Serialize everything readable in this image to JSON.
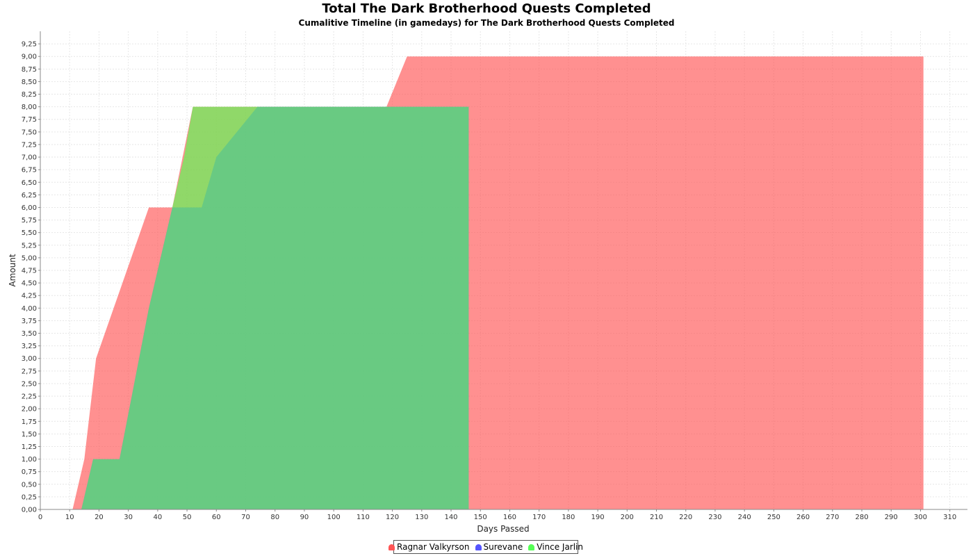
{
  "chart_data": {
    "type": "area",
    "title": "Total The Dark Brotherhood Quests Completed",
    "subtitle": "Cumalitive Timeline (in gamedays) for The Dark Brotherhood Quests Completed",
    "xlabel": "Days Passed",
    "ylabel": "Amount",
    "xlim": [
      0,
      316
    ],
    "ylim": [
      0,
      9.5
    ],
    "x_ticks": [
      0,
      10,
      20,
      30,
      40,
      50,
      60,
      70,
      80,
      90,
      100,
      110,
      120,
      130,
      140,
      150,
      160,
      170,
      180,
      190,
      200,
      210,
      220,
      230,
      240,
      250,
      260,
      270,
      280,
      290,
      300,
      310
    ],
    "y_ticks": [
      "0,00",
      "0,25",
      "0,50",
      "0,75",
      "1,00",
      "1,25",
      "1,50",
      "1,75",
      "2,00",
      "2,25",
      "2,50",
      "2,75",
      "3,00",
      "3,25",
      "3,50",
      "3,75",
      "4,00",
      "4,25",
      "4,50",
      "4,75",
      "5,00",
      "5,25",
      "5,50",
      "5,75",
      "6,00",
      "6,25",
      "6,50",
      "6,75",
      "7,00",
      "7,25",
      "7,50",
      "7,75",
      "8,00",
      "8,25",
      "8,50",
      "8,75",
      "9,00",
      "9,25"
    ],
    "grid": true,
    "legend_position": "bottom-center",
    "series": [
      {
        "name": "Ragnar Valkyrson",
        "color": "#ff5555",
        "points": [
          [
            11,
            0
          ],
          [
            15,
            1
          ],
          [
            19,
            3
          ],
          [
            37,
            6
          ],
          [
            45,
            6
          ],
          [
            52,
            8
          ],
          [
            118,
            8
          ],
          [
            125,
            9
          ],
          [
            301,
            9
          ],
          [
            301,
            0
          ]
        ]
      },
      {
        "name": "Surevane",
        "color": "#5555ff",
        "points": [
          [
            14,
            0
          ],
          [
            18,
            1
          ],
          [
            27,
            1
          ],
          [
            37,
            4
          ],
          [
            45,
            6
          ],
          [
            55,
            6
          ],
          [
            60,
            7
          ],
          [
            74,
            8
          ],
          [
            146,
            8
          ],
          [
            146,
            0
          ]
        ]
      },
      {
        "name": "Vince Jarlin",
        "color": "#55ff55",
        "points": [
          [
            14,
            0
          ],
          [
            18,
            1
          ],
          [
            27,
            1
          ],
          [
            37,
            4
          ],
          [
            45,
            6
          ],
          [
            49,
            7
          ],
          [
            52,
            8
          ],
          [
            74,
            8
          ],
          [
            146,
            8
          ],
          [
            146,
            0
          ]
        ]
      }
    ]
  }
}
